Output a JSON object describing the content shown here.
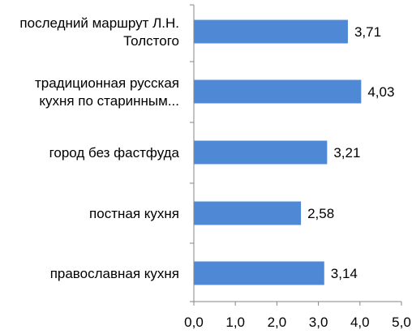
{
  "chart_data": {
    "type": "bar",
    "orientation": "horizontal",
    "categories": [
      [
        "последний маршрут Л.Н.",
        "Толстого"
      ],
      [
        "традиционная русская",
        "кухня по старинным..."
      ],
      [
        "город без фастфуда"
      ],
      [
        "постная кухня"
      ],
      [
        "православная кухня"
      ]
    ],
    "values": [
      3.71,
      4.03,
      3.21,
      2.58,
      3.14
    ],
    "value_labels": [
      "3,71",
      "4,03",
      "3,21",
      "2,58",
      "3,14"
    ],
    "xlim": [
      0,
      5
    ],
    "xticks": [
      0,
      1,
      2,
      3,
      4,
      5
    ],
    "xtick_labels": [
      "0,0",
      "1,0",
      "2,0",
      "3,0",
      "4,0",
      "5,0"
    ],
    "bar_color": "#4f89d6",
    "grid": false,
    "legend": "none"
  }
}
